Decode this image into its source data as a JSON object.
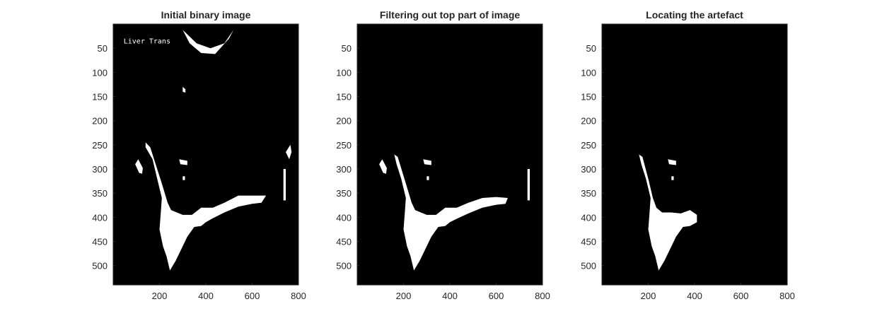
{
  "chart_data": [
    {
      "type": "heatmap",
      "title": "Initial binary image",
      "xlim": [
        0,
        800
      ],
      "ylim": [
        0,
        540
      ],
      "xticks": [
        200,
        400,
        600,
        800
      ],
      "yticks": [
        50,
        100,
        150,
        200,
        250,
        300,
        350,
        400,
        450,
        500
      ],
      "colormap": [
        "#000000",
        "#ffffff"
      ],
      "embedded_text": "Liver   Trans",
      "white_regions": [
        {
          "name": "header-text-arc",
          "points": [
            [
              300,
              12
            ],
            [
              360,
              40
            ],
            [
              420,
              50
            ],
            [
              480,
              40
            ],
            [
              520,
              12
            ],
            [
              500,
              30
            ],
            [
              440,
              62
            ],
            [
              380,
              60
            ],
            [
              330,
              40
            ]
          ]
        },
        {
          "name": "artefact-arm",
          "points": [
            [
              140,
              245
            ],
            [
              160,
              255
            ],
            [
              210,
              330
            ],
            [
              235,
              370
            ],
            [
              250,
              385
            ],
            [
              300,
              395
            ],
            [
              340,
              395
            ],
            [
              380,
              380
            ],
            [
              430,
              380
            ],
            [
              480,
              370
            ],
            [
              540,
              355
            ],
            [
              600,
              355
            ],
            [
              660,
              355
            ],
            [
              640,
              370
            ],
            [
              600,
              372
            ],
            [
              540,
              378
            ],
            [
              480,
              390
            ],
            [
              430,
              402
            ],
            [
              400,
              410
            ],
            [
              380,
              418
            ],
            [
              350,
              420
            ],
            [
              320,
              440
            ],
            [
              300,
              460
            ],
            [
              270,
              490
            ],
            [
              245,
              510
            ],
            [
              230,
              480
            ],
            [
              215,
              460
            ],
            [
              200,
              425
            ],
            [
              205,
              395
            ],
            [
              210,
              360
            ],
            [
              190,
              320
            ],
            [
              170,
              280
            ],
            [
              140,
              255
            ]
          ]
        },
        {
          "name": "left-speckle",
          "points": [
            [
              95,
              290
            ],
            [
              108,
              280
            ],
            [
              128,
              298
            ],
            [
              125,
              310
            ],
            [
              112,
              308
            ]
          ]
        },
        {
          "name": "small-mid-blob",
          "points": [
            [
              285,
              280
            ],
            [
              320,
              283
            ],
            [
              320,
              292
            ],
            [
              290,
              290
            ]
          ]
        },
        {
          "name": "small-blob-2",
          "points": [
            [
              300,
              315
            ],
            [
              310,
              315
            ],
            [
              310,
              323
            ],
            [
              300,
              323
            ]
          ]
        },
        {
          "name": "small-blob-upper",
          "points": [
            [
              300,
              130
            ],
            [
              312,
              135
            ],
            [
              312,
              142
            ],
            [
              300,
              140
            ]
          ]
        },
        {
          "name": "right-edge-streak",
          "points": [
            [
              735,
              300
            ],
            [
              745,
              300
            ],
            [
              745,
              365
            ],
            [
              735,
              365
            ]
          ]
        },
        {
          "name": "right-edge-blob",
          "points": [
            [
              745,
              265
            ],
            [
              765,
              250
            ],
            [
              770,
              265
            ],
            [
              760,
              280
            ]
          ]
        }
      ]
    },
    {
      "type": "heatmap",
      "title": "Filtering out top part of image",
      "xlim": [
        0,
        800
      ],
      "ylim": [
        0,
        540
      ],
      "xticks": [
        200,
        400,
        600,
        800
      ],
      "yticks": [
        50,
        100,
        150,
        200,
        250,
        300,
        350,
        400,
        450,
        500
      ],
      "colormap": [
        "#000000",
        "#ffffff"
      ],
      "white_regions": [
        {
          "name": "artefact-arm",
          "points": [
            [
              160,
              270
            ],
            [
              175,
              275
            ],
            [
              210,
              330
            ],
            [
              235,
              370
            ],
            [
              250,
              385
            ],
            [
              300,
              395
            ],
            [
              340,
              395
            ],
            [
              380,
              380
            ],
            [
              430,
              380
            ],
            [
              480,
              370
            ],
            [
              540,
              360
            ],
            [
              600,
              358
            ],
            [
              650,
              360
            ],
            [
              640,
              372
            ],
            [
              600,
              374
            ],
            [
              540,
              380
            ],
            [
              480,
              392
            ],
            [
              430,
              403
            ],
            [
              400,
              410
            ],
            [
              380,
              418
            ],
            [
              350,
              420
            ],
            [
              320,
              440
            ],
            [
              300,
              460
            ],
            [
              270,
              490
            ],
            [
              245,
              510
            ],
            [
              230,
              480
            ],
            [
              215,
              460
            ],
            [
              200,
              425
            ],
            [
              205,
              395
            ],
            [
              210,
              360
            ],
            [
              190,
              320
            ],
            [
              170,
              290
            ]
          ]
        },
        {
          "name": "left-speckle",
          "points": [
            [
              95,
              290
            ],
            [
              108,
              280
            ],
            [
              128,
              298
            ],
            [
              125,
              310
            ],
            [
              112,
              308
            ]
          ]
        },
        {
          "name": "small-mid-blob",
          "points": [
            [
              285,
              280
            ],
            [
              320,
              283
            ],
            [
              320,
              292
            ],
            [
              290,
              290
            ]
          ]
        },
        {
          "name": "small-blob-2",
          "points": [
            [
              300,
              315
            ],
            [
              310,
              315
            ],
            [
              310,
              323
            ],
            [
              300,
              323
            ]
          ]
        },
        {
          "name": "right-edge-streak",
          "points": [
            [
              735,
              300
            ],
            [
              745,
              300
            ],
            [
              745,
              365
            ],
            [
              735,
              365
            ]
          ]
        }
      ]
    },
    {
      "type": "heatmap",
      "title": "Locating the artefact",
      "xlim": [
        0,
        800
      ],
      "ylim": [
        0,
        540
      ],
      "xticks": [
        200,
        400,
        600,
        800
      ],
      "yticks": [
        50,
        100,
        150,
        200,
        250,
        300,
        350,
        400,
        450,
        500
      ],
      "colormap": [
        "#000000",
        "#ffffff"
      ],
      "white_regions": [
        {
          "name": "artefact-body",
          "points": [
            [
              160,
              270
            ],
            [
              175,
              275
            ],
            [
              200,
              320
            ],
            [
              220,
              360
            ],
            [
              235,
              380
            ],
            [
              260,
              390
            ],
            [
              300,
              390
            ],
            [
              340,
              392
            ],
            [
              380,
              385
            ],
            [
              410,
              395
            ],
            [
              410,
              410
            ],
            [
              380,
              418
            ],
            [
              350,
              420
            ],
            [
              320,
              440
            ],
            [
              300,
              460
            ],
            [
              270,
              490
            ],
            [
              245,
              510
            ],
            [
              230,
              480
            ],
            [
              215,
              460
            ],
            [
              200,
              425
            ],
            [
              205,
              395
            ],
            [
              210,
              360
            ],
            [
              190,
              320
            ],
            [
              170,
              290
            ]
          ]
        },
        {
          "name": "small-mid-blob",
          "points": [
            [
              285,
              280
            ],
            [
              320,
              283
            ],
            [
              320,
              292
            ],
            [
              290,
              290
            ]
          ]
        },
        {
          "name": "small-blob-2",
          "points": [
            [
              300,
              315
            ],
            [
              310,
              315
            ],
            [
              310,
              323
            ],
            [
              300,
              323
            ]
          ]
        }
      ]
    }
  ]
}
